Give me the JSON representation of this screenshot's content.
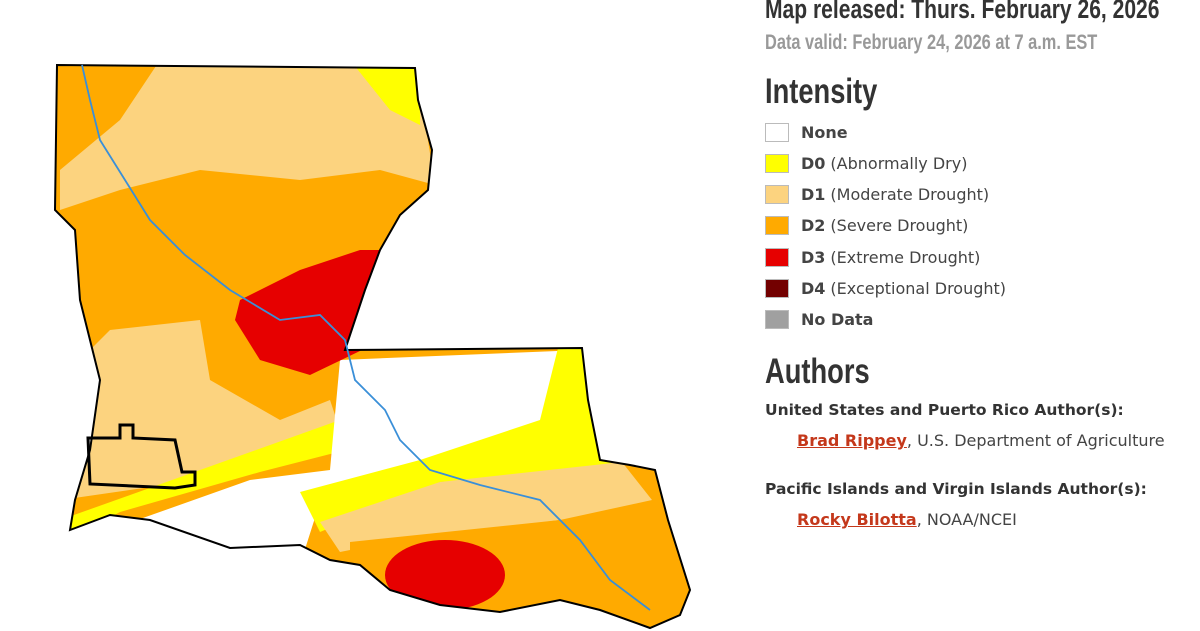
{
  "header": {
    "released": "Map released: Thurs. February 26, 2026",
    "valid": "Data valid: February 24, 2026 at 7 a.m. EST"
  },
  "intensity": {
    "title": "Intensity",
    "items": [
      {
        "name": "None"
      },
      {
        "code": "D0",
        "desc": "(Abnormally Dry)"
      },
      {
        "code": "D1",
        "desc": "(Moderate Drought)"
      },
      {
        "code": "D2",
        "desc": "(Severe Drought)"
      },
      {
        "code": "D3",
        "desc": "(Extreme Drought)"
      },
      {
        "code": "D4",
        "desc": "(Exceptional Drought)"
      },
      {
        "name": "No Data"
      }
    ]
  },
  "authors": {
    "title": "Authors",
    "groups": [
      {
        "heading": "United States and Puerto Rico Author(s):",
        "name": "Brad Rippey",
        "affiliation": ", U.S. Department of Agriculture"
      },
      {
        "heading": "Pacific Islands and Virgin Islands Author(s):",
        "name": "Rocky Bilotta",
        "affiliation": ", NOAA/NCEI"
      }
    ]
  }
}
